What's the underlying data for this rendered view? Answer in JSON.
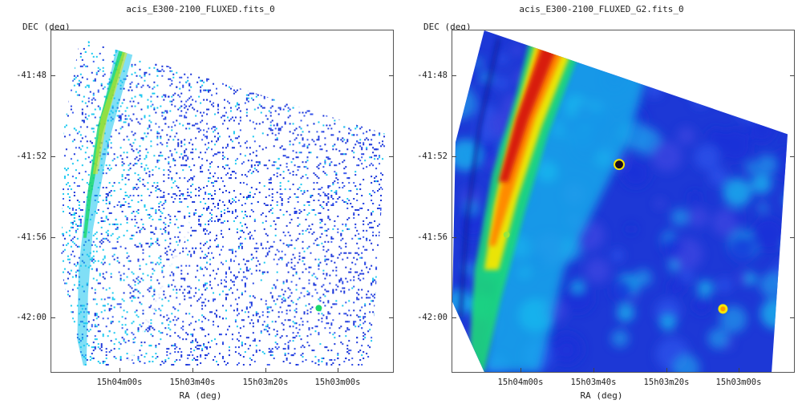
{
  "panels": [
    {
      "title": "acis_E300-2100_FLUXED.fits_0",
      "y_label": "DEC (deg)",
      "x_label": "RA (deg)",
      "y_ticks": [
        "-41:48",
        "-41:52",
        "-41:56",
        "-42:00"
      ],
      "x_ticks": [
        "15h04m00s",
        "15h03m40s",
        "15h03m20s",
        "15h03m00s"
      ]
    },
    {
      "title": "acis_E300-2100_FLUXED_G2.fits_0",
      "y_label": "DEC (deg)",
      "x_label": "RA (deg)",
      "y_ticks": [
        "-41:48",
        "-41:52",
        "-41:56",
        "-42:00"
      ],
      "x_ticks": [
        "15h04m00s",
        "15h03m40s",
        "15h03m20s",
        "15h03m00s"
      ]
    }
  ],
  "colors": {
    "low": "#1530d8",
    "mid": "#16c8f0",
    "green": "#19e060",
    "yellow": "#f6e600",
    "orange": "#ff8a00",
    "red": "#d81c0c"
  }
}
